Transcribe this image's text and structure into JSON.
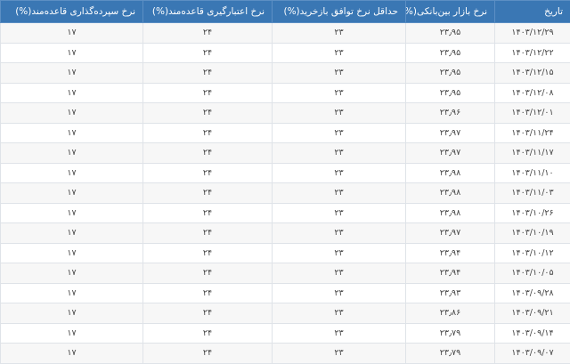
{
  "table": {
    "header_color": "#3a77b4",
    "columns": [
      "تاریخ",
      "نرخ بازار بین‌بانکی(%)",
      "حداقل نرخ توافق بازخرید(%)",
      "نرخ اعتبارگیری قاعده‌مند(%)",
      "نرخ سپرده‌گذاری قاعده‌مند(%)"
    ],
    "rows": [
      [
        "۱۴۰۳/۱۲/۲۹",
        "۲۳٫۹۵",
        "۲۳",
        "۲۴",
        "۱۷"
      ],
      [
        "۱۴۰۳/۱۲/۲۲",
        "۲۳٫۹۵",
        "۲۳",
        "۲۴",
        "۱۷"
      ],
      [
        "۱۴۰۳/۱۲/۱۵",
        "۲۳٫۹۵",
        "۲۳",
        "۲۴",
        "۱۷"
      ],
      [
        "۱۴۰۳/۱۲/۰۸",
        "۲۳٫۹۵",
        "۲۳",
        "۲۴",
        "۱۷"
      ],
      [
        "۱۴۰۳/۱۲/۰۱",
        "۲۳٫۹۶",
        "۲۳",
        "۲۴",
        "۱۷"
      ],
      [
        "۱۴۰۳/۱۱/۲۴",
        "۲۳٫۹۷",
        "۲۳",
        "۲۴",
        "۱۷"
      ],
      [
        "۱۴۰۳/۱۱/۱۷",
        "۲۳٫۹۷",
        "۲۳",
        "۲۴",
        "۱۷"
      ],
      [
        "۱۴۰۳/۱۱/۱۰",
        "۲۳٫۹۸",
        "۲۳",
        "۲۴",
        "۱۷"
      ],
      [
        "۱۴۰۳/۱۱/۰۳",
        "۲۳٫۹۸",
        "۲۳",
        "۲۴",
        "۱۷"
      ],
      [
        "۱۴۰۳/۱۰/۲۶",
        "۲۳٫۹۸",
        "۲۳",
        "۲۴",
        "۱۷"
      ],
      [
        "۱۴۰۳/۱۰/۱۹",
        "۲۳٫۹۷",
        "۲۳",
        "۲۴",
        "۱۷"
      ],
      [
        "۱۴۰۳/۱۰/۱۲",
        "۲۳٫۹۴",
        "۲۳",
        "۲۴",
        "۱۷"
      ],
      [
        "۱۴۰۳/۱۰/۰۵",
        "۲۳٫۹۴",
        "۲۳",
        "۲۴",
        "۱۷"
      ],
      [
        "۱۴۰۳/۰۹/۲۸",
        "۲۳٫۹۳",
        "۲۳",
        "۲۴",
        "۱۷"
      ],
      [
        "۱۴۰۳/۰۹/۲۱",
        "۲۳٫۸۶",
        "۲۳",
        "۲۴",
        "۱۷"
      ],
      [
        "۱۴۰۳/۰۹/۱۴",
        "۲۳٫۷۹",
        "۲۳",
        "۲۴",
        "۱۷"
      ],
      [
        "۱۴۰۳/۰۹/۰۷",
        "۲۳٫۷۹",
        "۲۳",
        "۲۴",
        "۱۷"
      ]
    ]
  }
}
